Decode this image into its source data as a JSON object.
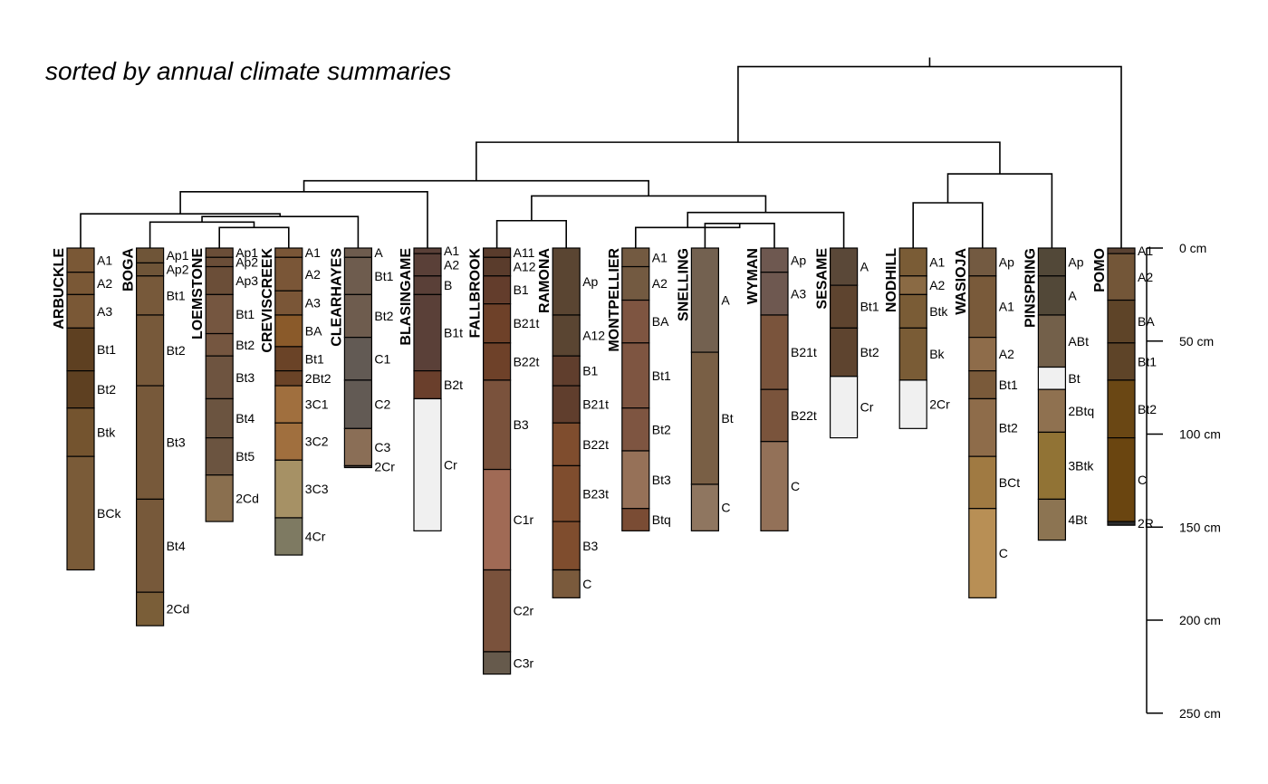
{
  "title": "sorted by annual climate summaries",
  "depth_axis": {
    "ticks": [
      {
        "depth": 0,
        "label": "0 cm"
      },
      {
        "depth": 50,
        "label": "50 cm"
      },
      {
        "depth": 100,
        "label": "100 cm"
      },
      {
        "depth": 150,
        "label": "150 cm"
      },
      {
        "depth": 200,
        "label": "200 cm"
      },
      {
        "depth": 250,
        "label": "250 cm"
      }
    ],
    "max_depth": 250
  },
  "dendrogram": {
    "leaves": [
      "ARBUCKLE",
      "BOGA",
      "LOEMSTONE",
      "CREVISCREEK",
      "CLEARHAYES",
      "BLASINGAME",
      "FALLBROOK",
      "RAMONA",
      "MONTPELLIER",
      "SNELLING",
      "WYMAN",
      "SESAME",
      "NODHILL",
      "WASIOJA",
      "PINSPRING",
      "POMO"
    ],
    "merges": [
      {
        "a": "leaf:2",
        "b": "leaf:3",
        "height": 0.35
      },
      {
        "a": "leaf:1",
        "b": "m:0",
        "height": 0.55
      },
      {
        "a": "m:1",
        "b": "leaf:4",
        "height": 0.75
      },
      {
        "a": "leaf:0",
        "b": "m:2",
        "height": 0.85
      },
      {
        "a": "m:3",
        "b": "leaf:5",
        "height": 1.65
      },
      {
        "a": "leaf:9",
        "b": "leaf:10",
        "height": 0.5
      },
      {
        "a": "leaf:8",
        "b": "m:5",
        "height": 0.35
      },
      {
        "a": "m:6",
        "b": "leaf:11",
        "height": 0.9
      },
      {
        "a": "leaf:6",
        "b": "leaf:7",
        "height": 0.6
      },
      {
        "a": "m:8",
        "b": "m:7",
        "height": 1.5
      },
      {
        "a": "m:4",
        "b": "m:9",
        "height": 2.05
      },
      {
        "a": "leaf:12",
        "b": "leaf:13",
        "height": 1.25
      },
      {
        "a": "m:11",
        "b": "leaf:14",
        "height": 2.3
      },
      {
        "a": "m:10",
        "b": "m:12",
        "height": 3.45
      },
      {
        "a": "m:13",
        "b": "leaf:15",
        "height": 6.2
      }
    ]
  },
  "chart_data": {
    "type": "soil_profile_sketch",
    "title": "sorted by annual climate summaries",
    "depth_unit": "cm",
    "profiles": [
      {
        "name": "ARBUCKLE",
        "horizons": [
          {
            "name": "A1",
            "top": 0,
            "bottom": 13,
            "color": "#7a5836"
          },
          {
            "name": "A2",
            "top": 13,
            "bottom": 25,
            "color": "#7a5836"
          },
          {
            "name": "A3",
            "top": 25,
            "bottom": 43,
            "color": "#7a5836"
          },
          {
            "name": "Bt1",
            "top": 43,
            "bottom": 66,
            "color": "#5e4021"
          },
          {
            "name": "Bt2",
            "top": 66,
            "bottom": 86,
            "color": "#5e4021"
          },
          {
            "name": "Btk",
            "top": 86,
            "bottom": 112,
            "color": "#74542f"
          },
          {
            "name": "BCk",
            "top": 112,
            "bottom": 173,
            "color": "#7a5b38"
          }
        ]
      },
      {
        "name": "BOGA",
        "horizons": [
          {
            "name": "Ap1",
            "top": 0,
            "bottom": 8,
            "color": "#6f5538"
          },
          {
            "name": "Ap2",
            "top": 8,
            "bottom": 15,
            "color": "#6f5538"
          },
          {
            "name": "Bt1",
            "top": 15,
            "bottom": 36,
            "color": "#77593a"
          },
          {
            "name": "Bt2",
            "top": 36,
            "bottom": 74,
            "color": "#77593a"
          },
          {
            "name": "Bt3",
            "top": 74,
            "bottom": 135,
            "color": "#77593a"
          },
          {
            "name": "Bt4",
            "top": 135,
            "bottom": 185,
            "color": "#77593a"
          },
          {
            "name": "2Cd",
            "top": 185,
            "bottom": 203,
            "color": "#7a5e38"
          }
        ]
      },
      {
        "name": "LOEMSTONE",
        "horizons": [
          {
            "name": "Ap1",
            "top": 0,
            "bottom": 5,
            "color": "#6b4e38"
          },
          {
            "name": "Ap2",
            "top": 5,
            "bottom": 10,
            "color": "#6b4e38"
          },
          {
            "name": "Ap3",
            "top": 10,
            "bottom": 25,
            "color": "#6b4e38"
          },
          {
            "name": "Bt1",
            "top": 25,
            "bottom": 46,
            "color": "#755640"
          },
          {
            "name": "Bt2",
            "top": 46,
            "bottom": 58,
            "color": "#755640"
          },
          {
            "name": "Bt3",
            "top": 58,
            "bottom": 81,
            "color": "#6e5440"
          },
          {
            "name": "Bt4",
            "top": 81,
            "bottom": 102,
            "color": "#6b5440"
          },
          {
            "name": "Bt5",
            "top": 102,
            "bottom": 122,
            "color": "#6b5440"
          },
          {
            "name": "2Cd",
            "top": 122,
            "bottom": 147,
            "color": "#8a6f4f"
          }
        ]
      },
      {
        "name": "CREVISCREEK",
        "horizons": [
          {
            "name": "A1",
            "top": 0,
            "bottom": 5,
            "color": "#7a5637"
          },
          {
            "name": "A2",
            "top": 5,
            "bottom": 23,
            "color": "#7a5637"
          },
          {
            "name": "A3",
            "top": 23,
            "bottom": 36,
            "color": "#7a5637"
          },
          {
            "name": "BA",
            "top": 36,
            "bottom": 53,
            "color": "#8a5a2a"
          },
          {
            "name": "Bt1",
            "top": 53,
            "bottom": 66,
            "color": "#6a4327"
          },
          {
            "name": "2Bt2",
            "top": 66,
            "bottom": 74,
            "color": "#6a4327"
          },
          {
            "name": "3C1",
            "top": 74,
            "bottom": 94,
            "color": "#a06f3e"
          },
          {
            "name": "3C2",
            "top": 94,
            "bottom": 114,
            "color": "#a06f3e"
          },
          {
            "name": "3C3",
            "top": 114,
            "bottom": 145,
            "color": "#a69165"
          },
          {
            "name": "4Cr",
            "top": 145,
            "bottom": 165,
            "color": "#7e7a62"
          }
        ]
      },
      {
        "name": "CLEARHAYES",
        "horizons": [
          {
            "name": "A",
            "top": 0,
            "bottom": 5,
            "color": "#6e5c4e"
          },
          {
            "name": "Bt1",
            "top": 5,
            "bottom": 25,
            "color": "#6e5c4e"
          },
          {
            "name": "Bt2",
            "top": 25,
            "bottom": 48,
            "color": "#6e5c4e"
          },
          {
            "name": "C1",
            "top": 48,
            "bottom": 71,
            "color": "#625a54"
          },
          {
            "name": "C2",
            "top": 71,
            "bottom": 97,
            "color": "#625a54"
          },
          {
            "name": "C3",
            "top": 97,
            "bottom": 117,
            "color": "#8a6e56"
          },
          {
            "name": "2Cr",
            "top": 117,
            "bottom": 118,
            "color": "#4c4340"
          }
        ]
      },
      {
        "name": "BLASINGAME",
        "horizons": [
          {
            "name": "A1",
            "top": 0,
            "bottom": 3,
            "color": "#5a4038"
          },
          {
            "name": "A2",
            "top": 3,
            "bottom": 15,
            "color": "#5a4038"
          },
          {
            "name": "B",
            "top": 15,
            "bottom": 25,
            "color": "#5a4038"
          },
          {
            "name": "B1t",
            "top": 25,
            "bottom": 66,
            "color": "#5a4038"
          },
          {
            "name": "B2t",
            "top": 66,
            "bottom": 81,
            "color": "#6a3f2c"
          },
          {
            "name": "Cr",
            "top": 81,
            "bottom": 152,
            "color": "#f0f0f0"
          }
        ]
      },
      {
        "name": "FALLBROOK",
        "horizons": [
          {
            "name": "A11",
            "top": 0,
            "bottom": 5,
            "color": "#5a3c2c"
          },
          {
            "name": "A12",
            "top": 5,
            "bottom": 15,
            "color": "#5a3c2c"
          },
          {
            "name": "B1",
            "top": 15,
            "bottom": 30,
            "color": "#633d2c"
          },
          {
            "name": "B21t",
            "top": 30,
            "bottom": 51,
            "color": "#6e4129"
          },
          {
            "name": "B22t",
            "top": 51,
            "bottom": 71,
            "color": "#6e4129"
          },
          {
            "name": "B3",
            "top": 71,
            "bottom": 119,
            "color": "#7a523c"
          },
          {
            "name": "C1r",
            "top": 119,
            "bottom": 173,
            "color": "#a06a55"
          },
          {
            "name": "C2r",
            "top": 173,
            "bottom": 217,
            "color": "#7a523c"
          },
          {
            "name": "C3r",
            "top": 217,
            "bottom": 229,
            "color": "#665a4c"
          }
        ]
      },
      {
        "name": "RAMONA",
        "horizons": [
          {
            "name": "Ap",
            "top": 0,
            "bottom": 36,
            "color": "#5a4532"
          },
          {
            "name": "A12",
            "top": 36,
            "bottom": 58,
            "color": "#5a4532"
          },
          {
            "name": "B1",
            "top": 58,
            "bottom": 74,
            "color": "#603e2d"
          },
          {
            "name": "B21t",
            "top": 74,
            "bottom": 94,
            "color": "#603e2d"
          },
          {
            "name": "B22t",
            "top": 94,
            "bottom": 117,
            "color": "#7f4d2e"
          },
          {
            "name": "B23t",
            "top": 117,
            "bottom": 147,
            "color": "#7f4d2e"
          },
          {
            "name": "B3",
            "top": 147,
            "bottom": 173,
            "color": "#7f4d2e"
          },
          {
            "name": "C",
            "top": 173,
            "bottom": 188,
            "color": "#7a5a3c"
          }
        ]
      },
      {
        "name": "MONTPELLIER",
        "horizons": [
          {
            "name": "A1",
            "top": 0,
            "bottom": 10,
            "color": "#735a41"
          },
          {
            "name": "A2",
            "top": 10,
            "bottom": 28,
            "color": "#735a41"
          },
          {
            "name": "BA",
            "top": 28,
            "bottom": 51,
            "color": "#7e5541"
          },
          {
            "name": "Bt1",
            "top": 51,
            "bottom": 86,
            "color": "#7e5541"
          },
          {
            "name": "Bt2",
            "top": 86,
            "bottom": 109,
            "color": "#7e5541"
          },
          {
            "name": "Bt3",
            "top": 109,
            "bottom": 140,
            "color": "#967158"
          },
          {
            "name": "Btq",
            "top": 140,
            "bottom": 152,
            "color": "#7a4c34"
          }
        ]
      },
      {
        "name": "SNELLING",
        "horizons": [
          {
            "name": "A",
            "top": 0,
            "bottom": 56,
            "color": "#736150"
          },
          {
            "name": "Bt",
            "top": 56,
            "bottom": 127,
            "color": "#795f45"
          },
          {
            "name": "C",
            "top": 127,
            "bottom": 152,
            "color": "#8f7660"
          }
        ]
      },
      {
        "name": "WYMAN",
        "horizons": [
          {
            "name": "Ap",
            "top": 0,
            "bottom": 13,
            "color": "#6e5850"
          },
          {
            "name": "A3",
            "top": 13,
            "bottom": 36,
            "color": "#6e5850"
          },
          {
            "name": "B21t",
            "top": 36,
            "bottom": 76,
            "color": "#7a543c"
          },
          {
            "name": "B22t",
            "top": 76,
            "bottom": 104,
            "color": "#7a543c"
          },
          {
            "name": "C",
            "top": 104,
            "bottom": 152,
            "color": "#937158"
          }
        ]
      },
      {
        "name": "SESAME",
        "horizons": [
          {
            "name": "A",
            "top": 0,
            "bottom": 20,
            "color": "#5a4838"
          },
          {
            "name": "Bt1",
            "top": 20,
            "bottom": 43,
            "color": "#5e442f"
          },
          {
            "name": "Bt2",
            "top": 43,
            "bottom": 69,
            "color": "#5e442f"
          },
          {
            "name": "Cr",
            "top": 69,
            "bottom": 102,
            "color": "#f0f0f0"
          }
        ]
      },
      {
        "name": "NODHILL",
        "horizons": [
          {
            "name": "A1",
            "top": 0,
            "bottom": 15,
            "color": "#7a5c36"
          },
          {
            "name": "A2",
            "top": 15,
            "bottom": 25,
            "color": "#8a6a44"
          },
          {
            "name": "Btk",
            "top": 25,
            "bottom": 43,
            "color": "#7a5c36"
          },
          {
            "name": "Bk",
            "top": 43,
            "bottom": 71,
            "color": "#7a5c36"
          },
          {
            "name": "2Cr",
            "top": 71,
            "bottom": 97,
            "color": "#f0f0f0"
          }
        ]
      },
      {
        "name": "WASIOJA",
        "horizons": [
          {
            "name": "Ap",
            "top": 0,
            "bottom": 15,
            "color": "#735a41"
          },
          {
            "name": "A1",
            "top": 15,
            "bottom": 48,
            "color": "#795a3a"
          },
          {
            "name": "A2",
            "top": 48,
            "bottom": 66,
            "color": "#8e6c4a"
          },
          {
            "name": "Bt1",
            "top": 66,
            "bottom": 81,
            "color": "#7a5a3a"
          },
          {
            "name": "Bt2",
            "top": 81,
            "bottom": 112,
            "color": "#8e6c4a"
          },
          {
            "name": "BCt",
            "top": 112,
            "bottom": 140,
            "color": "#a07a42"
          },
          {
            "name": "C",
            "top": 140,
            "bottom": 188,
            "color": "#b88f55"
          }
        ]
      },
      {
        "name": "PINSPRING",
        "horizons": [
          {
            "name": "Ap",
            "top": 0,
            "bottom": 15,
            "color": "#524838"
          },
          {
            "name": "A",
            "top": 15,
            "bottom": 36,
            "color": "#524838"
          },
          {
            "name": "ABt",
            "top": 36,
            "bottom": 64,
            "color": "#73604a"
          },
          {
            "name": "Bt",
            "top": 64,
            "bottom": 76,
            "color": "#f0f0f0"
          },
          {
            "name": "2Btq",
            "top": 76,
            "bottom": 99,
            "color": "#8f7150"
          },
          {
            "name": "3Btk",
            "top": 99,
            "bottom": 135,
            "color": "#917335"
          },
          {
            "name": "4Bt",
            "top": 135,
            "bottom": 157,
            "color": "#8c7452"
          }
        ]
      },
      {
        "name": "POMO",
        "horizons": [
          {
            "name": "A1",
            "top": 0,
            "bottom": 3,
            "color": "#5a4232"
          },
          {
            "name": "A2",
            "top": 3,
            "bottom": 28,
            "color": "#735638"
          },
          {
            "name": "BA",
            "top": 28,
            "bottom": 51,
            "color": "#5e4428"
          },
          {
            "name": "Bt1",
            "top": 51,
            "bottom": 71,
            "color": "#5e4428"
          },
          {
            "name": "Bt2",
            "top": 71,
            "bottom": 102,
            "color": "#6a4714"
          },
          {
            "name": "C",
            "top": 102,
            "bottom": 147,
            "color": "#6a4510"
          },
          {
            "name": "2R",
            "top": 147,
            "bottom": 149,
            "color": "#2c2c2c"
          }
        ]
      }
    ]
  }
}
